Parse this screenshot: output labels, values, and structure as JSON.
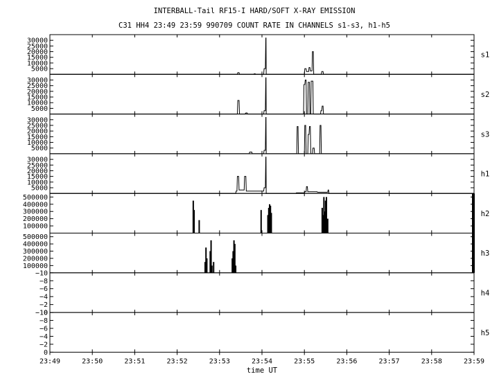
{
  "chart_data": {
    "type": "line",
    "title": "INTERBALL-Tail RF15-I HARD/SOFT X-RAY EMISSION",
    "subtitle": "C31 HH4 23:49 23:59 990709  COUNT RATE IN CHANNELS s1-s3, h1-h5",
    "xlabel": "time UT",
    "x_ticks": [
      "23:49",
      "23:50",
      "23:51",
      "23:52",
      "23:53",
      "23:54",
      "23:55",
      "23:56",
      "23:57",
      "23:58",
      "23:59"
    ],
    "xlim_minutes": [
      0,
      10
    ],
    "panels": [
      {
        "name": "s1",
        "ylim": [
          0,
          35000
        ],
        "y_ticks": [
          5000,
          10000,
          15000,
          20000,
          25000,
          30000
        ],
        "points": [
          [
            0,
            0
          ],
          [
            4.42,
            0
          ],
          [
            4.43,
            1500
          ],
          [
            4.46,
            1500
          ],
          [
            4.47,
            0
          ],
          [
            4.8,
            0
          ],
          [
            4.82,
            500
          ],
          [
            4.84,
            500
          ],
          [
            4.85,
            0
          ],
          [
            5.04,
            0
          ],
          [
            5.05,
            5000
          ],
          [
            5.08,
            5000
          ],
          [
            5.09,
            32000
          ],
          [
            5.095,
            32000
          ],
          [
            5.1,
            0
          ],
          [
            6.0,
            0
          ],
          [
            6.01,
            5000
          ],
          [
            6.04,
            5000
          ],
          [
            6.05,
            2500
          ],
          [
            6.1,
            2500
          ],
          [
            6.11,
            6000
          ],
          [
            6.13,
            6000
          ],
          [
            6.14,
            3000
          ],
          [
            6.18,
            3000
          ],
          [
            6.19,
            20000
          ],
          [
            6.21,
            20000
          ],
          [
            6.22,
            0
          ],
          [
            6.4,
            0
          ],
          [
            6.41,
            2500
          ],
          [
            6.44,
            2500
          ],
          [
            6.45,
            0
          ],
          [
            10,
            0
          ]
        ]
      },
      {
        "name": "s2",
        "ylim": [
          0,
          35000
        ],
        "y_ticks": [
          5000,
          10000,
          15000,
          20000,
          25000,
          30000
        ],
        "points": [
          [
            0,
            0
          ],
          [
            4.42,
            0
          ],
          [
            4.43,
            12000
          ],
          [
            4.46,
            12000
          ],
          [
            4.47,
            0
          ],
          [
            4.6,
            0
          ],
          [
            4.62,
            1000
          ],
          [
            4.65,
            1000
          ],
          [
            4.66,
            0
          ],
          [
            5.04,
            0
          ],
          [
            5.05,
            3000
          ],
          [
            5.08,
            3000
          ],
          [
            5.09,
            32000
          ],
          [
            5.095,
            32000
          ],
          [
            5.1,
            0
          ],
          [
            5.98,
            0
          ],
          [
            5.99,
            26000
          ],
          [
            6.01,
            26000
          ],
          [
            6.02,
            30000
          ],
          [
            6.04,
            30000
          ],
          [
            6.05,
            0
          ],
          [
            6.08,
            0
          ],
          [
            6.09,
            28000
          ],
          [
            6.12,
            28000
          ],
          [
            6.13,
            0
          ],
          [
            6.15,
            0
          ],
          [
            6.16,
            29000
          ],
          [
            6.2,
            29000
          ],
          [
            6.21,
            0
          ],
          [
            6.38,
            0
          ],
          [
            6.39,
            3000
          ],
          [
            6.41,
            3000
          ],
          [
            6.42,
            7000
          ],
          [
            6.44,
            7000
          ],
          [
            6.45,
            0
          ],
          [
            10,
            0
          ]
        ]
      },
      {
        "name": "s3",
        "ylim": [
          0,
          35000
        ],
        "y_ticks": [
          5000,
          10000,
          15000,
          20000,
          25000,
          30000
        ],
        "points": [
          [
            0,
            0
          ],
          [
            4.7,
            0
          ],
          [
            4.71,
            1500
          ],
          [
            4.76,
            1500
          ],
          [
            4.77,
            0
          ],
          [
            5.04,
            0
          ],
          [
            5.05,
            3000
          ],
          [
            5.08,
            3000
          ],
          [
            5.09,
            32000
          ],
          [
            5.095,
            32000
          ],
          [
            5.1,
            0
          ],
          [
            5.82,
            0
          ],
          [
            5.83,
            24000
          ],
          [
            5.85,
            24000
          ],
          [
            5.86,
            0
          ],
          [
            6.0,
            0
          ],
          [
            6.01,
            25000
          ],
          [
            6.03,
            25000
          ],
          [
            6.04,
            0
          ],
          [
            6.08,
            0
          ],
          [
            6.09,
            17000
          ],
          [
            6.11,
            17000
          ],
          [
            6.12,
            24000
          ],
          [
            6.14,
            24000
          ],
          [
            6.15,
            0
          ],
          [
            6.19,
            0
          ],
          [
            6.2,
            5000
          ],
          [
            6.23,
            5000
          ],
          [
            6.24,
            0
          ],
          [
            6.36,
            0
          ],
          [
            6.37,
            25000
          ],
          [
            6.39,
            25000
          ],
          [
            6.4,
            0
          ],
          [
            10,
            0
          ]
        ]
      },
      {
        "name": "h1",
        "ylim": [
          0,
          35000
        ],
        "y_ticks": [
          5000,
          10000,
          15000,
          20000,
          25000,
          30000
        ],
        "points": [
          [
            0,
            0
          ],
          [
            4.38,
            0
          ],
          [
            4.39,
            2000
          ],
          [
            4.41,
            2000
          ],
          [
            4.42,
            15000
          ],
          [
            4.45,
            15000
          ],
          [
            4.46,
            3000
          ],
          [
            4.58,
            3000
          ],
          [
            4.59,
            15000
          ],
          [
            4.62,
            15000
          ],
          [
            4.63,
            2000
          ],
          [
            5.04,
            2000
          ],
          [
            5.05,
            5000
          ],
          [
            5.08,
            5000
          ],
          [
            5.09,
            32000
          ],
          [
            5.095,
            32000
          ],
          [
            5.1,
            0
          ],
          [
            5.8,
            0
          ],
          [
            5.81,
            500
          ],
          [
            6.0,
            500
          ],
          [
            6.01,
            1500
          ],
          [
            6.04,
            1500
          ],
          [
            6.05,
            6000
          ],
          [
            6.07,
            6000
          ],
          [
            6.08,
            1500
          ],
          [
            6.3,
            1500
          ],
          [
            6.31,
            1000
          ],
          [
            6.55,
            1000
          ],
          [
            6.56,
            3000
          ],
          [
            6.57,
            3000
          ],
          [
            6.58,
            0
          ],
          [
            10,
            0
          ]
        ]
      },
      {
        "name": "h2",
        "ylim": [
          0,
          550000
        ],
        "y_ticks": [
          100000,
          200000,
          300000,
          400000,
          500000
        ],
        "bars": [
          [
            3.38,
            450000
          ],
          [
            3.4,
            320000
          ],
          [
            3.52,
            180000
          ],
          [
            4.98,
            320000
          ],
          [
            5.14,
            250000
          ],
          [
            5.16,
            350000
          ],
          [
            5.18,
            400000
          ],
          [
            5.2,
            380000
          ],
          [
            5.22,
            280000
          ],
          [
            6.42,
            350000
          ],
          [
            6.44,
            250000
          ],
          [
            6.46,
            500000
          ],
          [
            6.48,
            300000
          ],
          [
            6.5,
            450000
          ],
          [
            6.52,
            500000
          ],
          [
            6.55,
            200000
          ]
        ]
      },
      {
        "name": "h3",
        "ylim": [
          0,
          550000
        ],
        "y_ticks": [
          100000,
          200000,
          300000,
          400000,
          500000
        ],
        "bars": [
          [
            3.66,
            150000
          ],
          [
            3.68,
            350000
          ],
          [
            3.7,
            200000
          ],
          [
            3.78,
            300000
          ],
          [
            3.8,
            450000
          ],
          [
            3.82,
            100000
          ],
          [
            3.86,
            150000
          ],
          [
            4.3,
            200000
          ],
          [
            4.32,
            300000
          ],
          [
            4.34,
            450000
          ],
          [
            4.36,
            400000
          ],
          [
            4.38,
            100000
          ]
        ]
      },
      {
        "name": "h4",
        "ylim": [
          0,
          10
        ],
        "y_ticks": [
          0,
          2,
          4,
          6,
          8,
          10
        ],
        "y_tick_labels": [
          "0",
          "−2",
          "−4",
          "−6",
          "−8",
          "−10"
        ]
      },
      {
        "name": "h5",
        "ylim": [
          0,
          10
        ],
        "y_ticks": [
          0,
          2,
          4,
          6,
          8,
          10
        ],
        "y_tick_labels": [
          "0",
          "−2",
          "−4",
          "−6",
          "−8",
          "−10"
        ]
      }
    ]
  }
}
